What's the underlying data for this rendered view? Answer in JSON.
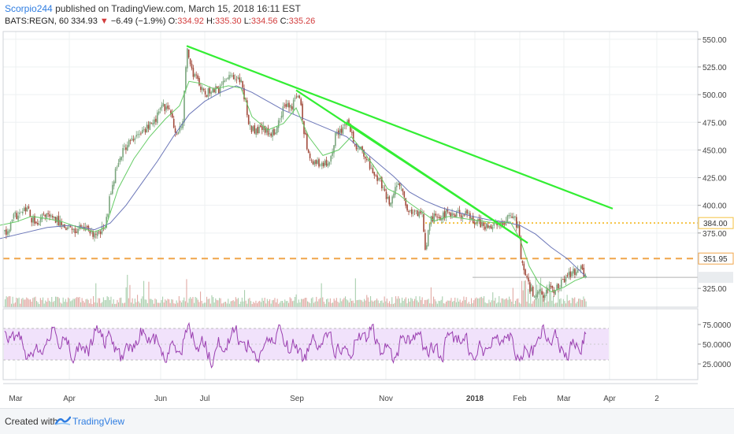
{
  "header": {
    "author": "Scorpio244",
    "published_text": "published on TradingView.com, March 15, 2018 16:11 EST"
  },
  "ticker": {
    "symbol": "BATS:REGN, 60",
    "last": "334.93",
    "change": "−6.49 (−1.9%)",
    "o_label": "O:",
    "o_value": "334.92",
    "h_label": "H:",
    "h_value": "335.30",
    "l_label": "L:",
    "l_value": "334.56",
    "c_label": "C:",
    "c_value": "335.26"
  },
  "footer": {
    "created_with": "Created with",
    "brand": "TradingView"
  },
  "chart_data": [
    {
      "type": "candlestick",
      "symbol": "BATS:REGN",
      "interval": "60",
      "x_ticks": [
        "Mar",
        "Apr",
        "Jun",
        "Jul",
        "Sep",
        "Nov",
        "2018",
        "Feb",
        "Mar",
        "Apr",
        "2"
      ],
      "price_ticks": [
        "550.00",
        "525.00",
        "500.00",
        "475.00",
        "450.00",
        "425.00",
        "400.00",
        "375.00",
        "325.00"
      ],
      "ylim": [
        308,
        557
      ],
      "price_path": [
        [
          0,
          385
        ],
        [
          8,
          372
        ],
        [
          18,
          390
        ],
        [
          28,
          393
        ],
        [
          34,
          397
        ],
        [
          40,
          388
        ],
        [
          48,
          380
        ],
        [
          56,
          393
        ],
        [
          64,
          388
        ],
        [
          74,
          386
        ],
        [
          84,
          381
        ],
        [
          94,
          376
        ],
        [
          104,
          381
        ],
        [
          114,
          374
        ],
        [
          124,
          373
        ],
        [
          134,
          381
        ],
        [
          140,
          410
        ],
        [
          148,
          436
        ],
        [
          156,
          450
        ],
        [
          166,
          458
        ],
        [
          176,
          463
        ],
        [
          186,
          470
        ],
        [
          196,
          476
        ],
        [
          206,
          490
        ],
        [
          216,
          486
        ],
        [
          224,
          460
        ],
        [
          232,
          478
        ],
        [
          238,
          544
        ],
        [
          244,
          520
        ],
        [
          252,
          512
        ],
        [
          260,
          498
        ],
        [
          268,
          506
        ],
        [
          276,
          503
        ],
        [
          284,
          510
        ],
        [
          292,
          520
        ],
        [
          300,
          516
        ],
        [
          306,
          510
        ],
        [
          312,
          492
        ],
        [
          318,
          468
        ],
        [
          326,
          467
        ],
        [
          334,
          470
        ],
        [
          342,
          462
        ],
        [
          350,
          468
        ],
        [
          358,
          485
        ],
        [
          366,
          492
        ],
        [
          372,
          490
        ],
        [
          376,
          502
        ],
        [
          382,
          490
        ],
        [
          386,
          468
        ],
        [
          392,
          446
        ],
        [
          400,
          438
        ],
        [
          410,
          435
        ],
        [
          418,
          441
        ],
        [
          426,
          462
        ],
        [
          434,
          470
        ],
        [
          442,
          474
        ],
        [
          450,
          455
        ],
        [
          458,
          450
        ],
        [
          466,
          440
        ],
        [
          474,
          428
        ],
        [
          482,
          424
        ],
        [
          488,
          410
        ],
        [
          494,
          403
        ],
        [
          500,
          411
        ],
        [
          506,
          418
        ],
        [
          512,
          410
        ],
        [
          518,
          394
        ],
        [
          524,
          390
        ],
        [
          530,
          394
        ],
        [
          536,
          394
        ],
        [
          540,
          360
        ],
        [
          546,
          386
        ],
        [
          552,
          392
        ],
        [
          560,
          390
        ],
        [
          568,
          393
        ],
        [
          576,
          391
        ],
        [
          584,
          393
        ],
        [
          592,
          391
        ],
        [
          600,
          388
        ],
        [
          608,
          384
        ],
        [
          616,
          381
        ],
        [
          624,
          381
        ],
        [
          632,
          383
        ],
        [
          640,
          381
        ],
        [
          646,
          393
        ],
        [
          652,
          392
        ],
        [
          658,
          378
        ],
        [
          662,
          350
        ],
        [
          666,
          340
        ],
        [
          672,
          325
        ],
        [
          678,
          320
        ],
        [
          684,
          325
        ],
        [
          690,
          315
        ],
        [
          696,
          328
        ],
        [
          702,
          323
        ],
        [
          708,
          328
        ],
        [
          714,
          330
        ],
        [
          720,
          336
        ],
        [
          726,
          337
        ],
        [
          732,
          342
        ],
        [
          736,
          343
        ],
        [
          742,
          336
        ],
        [
          745,
          334.93
        ]
      ],
      "ma_fast_path": [
        [
          0,
          382
        ],
        [
          20,
          385
        ],
        [
          40,
          390
        ],
        [
          60,
          388
        ],
        [
          80,
          385
        ],
        [
          100,
          380
        ],
        [
          120,
          376
        ],
        [
          134,
          380
        ],
        [
          150,
          415
        ],
        [
          170,
          442
        ],
        [
          190,
          462
        ],
        [
          210,
          478
        ],
        [
          228,
          490
        ],
        [
          240,
          512
        ],
        [
          256,
          510
        ],
        [
          272,
          505
        ],
        [
          290,
          508
        ],
        [
          306,
          506
        ],
        [
          320,
          480
        ],
        [
          340,
          468
        ],
        [
          360,
          474
        ],
        [
          376,
          488
        ],
        [
          392,
          462
        ],
        [
          410,
          445
        ],
        [
          430,
          450
        ],
        [
          446,
          462
        ],
        [
          462,
          448
        ],
        [
          478,
          432
        ],
        [
          492,
          415
        ],
        [
          506,
          410
        ],
        [
          520,
          402
        ],
        [
          536,
          394
        ],
        [
          552,
          386
        ],
        [
          570,
          390
        ],
        [
          590,
          388
        ],
        [
          610,
          386
        ],
        [
          630,
          384
        ],
        [
          648,
          385
        ],
        [
          660,
          370
        ],
        [
          672,
          345
        ],
        [
          684,
          330
        ],
        [
          700,
          322
        ],
        [
          716,
          326
        ],
        [
          730,
          332
        ],
        [
          745,
          336
        ]
      ],
      "ma_slow_path": [
        [
          0,
          370
        ],
        [
          30,
          375
        ],
        [
          60,
          380
        ],
        [
          90,
          382
        ],
        [
          120,
          378
        ],
        [
          140,
          384
        ],
        [
          160,
          400
        ],
        [
          180,
          420
        ],
        [
          200,
          440
        ],
        [
          220,
          462
        ],
        [
          240,
          482
        ],
        [
          260,
          494
        ],
        [
          280,
          502
        ],
        [
          300,
          508
        ],
        [
          320,
          502
        ],
        [
          340,
          494
        ],
        [
          360,
          486
        ],
        [
          380,
          480
        ],
        [
          400,
          474
        ],
        [
          420,
          468
        ],
        [
          440,
          462
        ],
        [
          460,
          450
        ],
        [
          480,
          438
        ],
        [
          500,
          426
        ],
        [
          520,
          412
        ],
        [
          540,
          404
        ],
        [
          560,
          398
        ],
        [
          580,
          394
        ],
        [
          600,
          390
        ],
        [
          620,
          387
        ],
        [
          640,
          385
        ],
        [
          660,
          382
        ],
        [
          680,
          374
        ],
        [
          700,
          362
        ],
        [
          720,
          352
        ],
        [
          745,
          334.93
        ]
      ],
      "trendlines": [
        {
          "from": [
            237,
            544
          ],
          "to": [
            778,
            397
          ]
        },
        {
          "from": [
            376,
            504
          ],
          "to": [
            670,
            366
          ]
        },
        {
          "from": [
            440,
            475
          ],
          "to": [
            670,
            366
          ]
        }
      ],
      "levels": [
        {
          "value": 384.0,
          "label": "384.00",
          "color": "#f5c242",
          "style": "dotted"
        },
        {
          "value": 351.95,
          "label": "351.95",
          "color": "#f0a54a",
          "style": "dashed"
        },
        {
          "value": 334.93,
          "label": "",
          "color": "#b0b0b0",
          "style": "solid"
        }
      ]
    },
    {
      "type": "line",
      "indicator": "RSI",
      "y_ticks": [
        "75.0000",
        "50.0000",
        "25.0000"
      ],
      "ylim": [
        5,
        95
      ],
      "band": [
        30,
        70
      ],
      "baseline": 50
    }
  ],
  "colors": {
    "up": "#7aa57d",
    "down": "#a24b3c",
    "fast_ma": "#66cc66",
    "slow_ma": "#6b76b8",
    "trendline": "#33ee33",
    "rsi_line": "#9a3fb0",
    "rsi_band": "#f1e2fb",
    "author": "#2f7de1"
  }
}
